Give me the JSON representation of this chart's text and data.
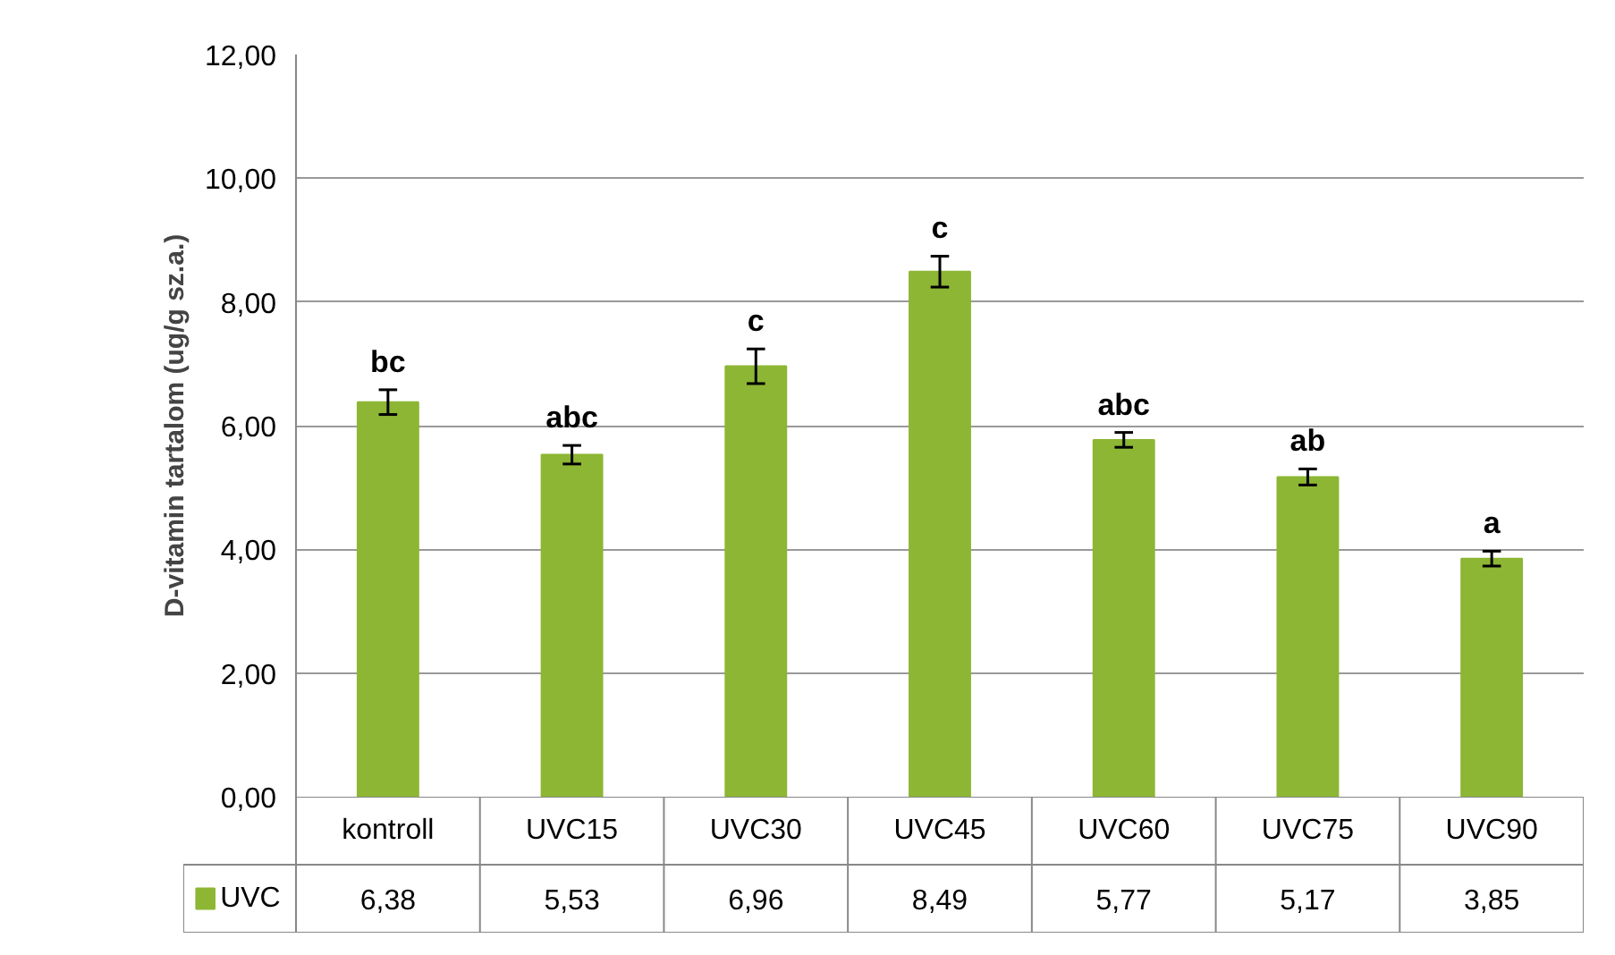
{
  "chart_data": {
    "type": "bar",
    "ylabel": "D-vitamin tartalom (ug/g sz.a.)",
    "categories": [
      "kontroll",
      "UVC15",
      "UVC30",
      "UVC45",
      "UVC60",
      "UVC75",
      "UVC90"
    ],
    "series": [
      {
        "name": "UVC",
        "color": "#8db634",
        "values": [
          6.38,
          5.53,
          6.96,
          8.49,
          5.77,
          5.17,
          3.85
        ],
        "errors": [
          0.2,
          0.15,
          0.28,
          0.25,
          0.12,
          0.13,
          0.12
        ],
        "value_labels": [
          "6,38",
          "5,53",
          "6,96",
          "8,49",
          "5,77",
          "5,17",
          "3,85"
        ]
      }
    ],
    "ylim": [
      0,
      12
    ],
    "yticks": [
      {
        "value": 0,
        "label": "0,00"
      },
      {
        "value": 2,
        "label": "2,00"
      },
      {
        "value": 4,
        "label": "4,00"
      },
      {
        "value": 6,
        "label": "6,00"
      },
      {
        "value": 8,
        "label": "8,00"
      },
      {
        "value": 10,
        "label": "10,00"
      },
      {
        "value": 12,
        "label": "12,00"
      }
    ],
    "grid": "y",
    "legend": "bottom",
    "annotations": [
      "bc",
      "abc",
      "c",
      "c",
      "abc",
      "ab",
      "a"
    ]
  }
}
